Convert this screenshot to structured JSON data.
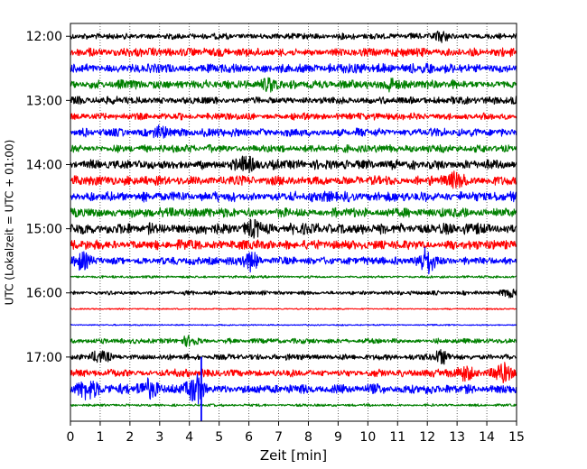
{
  "chart_data": {
    "type": "line",
    "title": "",
    "xlabel": "Zeit  [min]",
    "ylabel": "UTC (Lokalzeit = UTC + 01:00)",
    "xlim": [
      0,
      15
    ],
    "x_ticks": [
      0,
      1,
      2,
      3,
      4,
      5,
      6,
      7,
      8,
      9,
      10,
      11,
      12,
      13,
      14,
      15
    ],
    "y_tick_labels": [
      "12:00",
      "13:00",
      "14:00",
      "15:00",
      "16:00",
      "17:00"
    ],
    "grid": "vertical dotted lines at each minute",
    "trace_colors": [
      "#000000",
      "#ff0000",
      "#0000ff",
      "#008000"
    ],
    "trace_interval_minutes": 15,
    "traces": [
      {
        "start": "12:00",
        "color": "#000000",
        "level": 0.35
      },
      {
        "start": "12:15",
        "color": "#ff0000",
        "level": 0.5
      },
      {
        "start": "12:30",
        "color": "#0000ff",
        "level": 0.55
      },
      {
        "start": "12:45",
        "color": "#008000",
        "level": 0.55
      },
      {
        "start": "13:00",
        "color": "#000000",
        "level": 0.45
      },
      {
        "start": "13:15",
        "color": "#ff0000",
        "level": 0.4
      },
      {
        "start": "13:30",
        "color": "#0000ff",
        "level": 0.5
      },
      {
        "start": "13:45",
        "color": "#008000",
        "level": 0.45
      },
      {
        "start": "14:00",
        "color": "#000000",
        "level": 0.55
      },
      {
        "start": "14:15",
        "color": "#ff0000",
        "level": 0.55
      },
      {
        "start": "14:30",
        "color": "#0000ff",
        "level": 0.6
      },
      {
        "start": "14:45",
        "color": "#008000",
        "level": 0.55
      },
      {
        "start": "15:00",
        "color": "#000000",
        "level": 0.65
      },
      {
        "start": "15:15",
        "color": "#ff0000",
        "level": 0.55
      },
      {
        "start": "15:30",
        "color": "#0000ff",
        "level": 0.45
      },
      {
        "start": "15:45",
        "color": "#008000",
        "level": 0.15
      },
      {
        "start": "16:00",
        "color": "#000000",
        "level": 0.25
      },
      {
        "start": "16:15",
        "color": "#ff0000",
        "level": 0.08
      },
      {
        "start": "16:30",
        "color": "#0000ff",
        "level": 0.08
      },
      {
        "start": "16:45",
        "color": "#008000",
        "level": 0.3
      },
      {
        "start": "17:00",
        "color": "#000000",
        "level": 0.35
      },
      {
        "start": "17:15",
        "color": "#ff0000",
        "level": 0.45
      },
      {
        "start": "17:30",
        "color": "#0000ff",
        "level": 0.6
      },
      {
        "start": "17:45",
        "color": "#008000",
        "level": 0.15
      }
    ],
    "events": [
      {
        "trace_start": "12:00",
        "minute": 12.5,
        "amp": 0.7
      },
      {
        "trace_start": "12:45",
        "minute": 6.7,
        "amp": 0.8
      },
      {
        "trace_start": "12:45",
        "minute": 10.7,
        "amp": 0.7
      },
      {
        "trace_start": "13:30",
        "minute": 3.1,
        "amp": 0.6
      },
      {
        "trace_start": "14:00",
        "minute": 5.9,
        "amp": 0.9
      },
      {
        "trace_start": "14:15",
        "minute": 13.0,
        "amp": 0.9
      },
      {
        "trace_start": "15:00",
        "minute": 6.2,
        "amp": 0.8
      },
      {
        "trace_start": "15:30",
        "minute": 6.0,
        "amp": 1.2
      },
      {
        "trace_start": "15:30",
        "minute": 12.0,
        "amp": 1.8
      },
      {
        "trace_start": "15:30",
        "minute": 0.4,
        "amp": 1.0
      },
      {
        "trace_start": "16:00",
        "minute": 14.8,
        "amp": 0.5
      },
      {
        "trace_start": "16:45",
        "minute": 4.0,
        "amp": 0.5
      },
      {
        "trace_start": "17:00",
        "minute": 1.0,
        "amp": 0.7
      },
      {
        "trace_start": "17:00",
        "minute": 12.5,
        "amp": 0.8
      },
      {
        "trace_start": "17:15",
        "minute": 14.5,
        "amp": 1.2
      },
      {
        "trace_start": "17:15",
        "minute": 13.3,
        "amp": 0.9
      },
      {
        "trace_start": "17:30",
        "minute": 0.6,
        "amp": 1.3
      },
      {
        "trace_start": "17:30",
        "minute": 2.6,
        "amp": 1.3
      },
      {
        "trace_start": "17:30",
        "minute": 4.2,
        "amp": 1.6
      }
    ],
    "spikes": [
      {
        "trace_start": "17:15",
        "minute": 4.4,
        "extent": [
          17.0,
          18.0
        ],
        "color": "#0000ff"
      }
    ]
  }
}
